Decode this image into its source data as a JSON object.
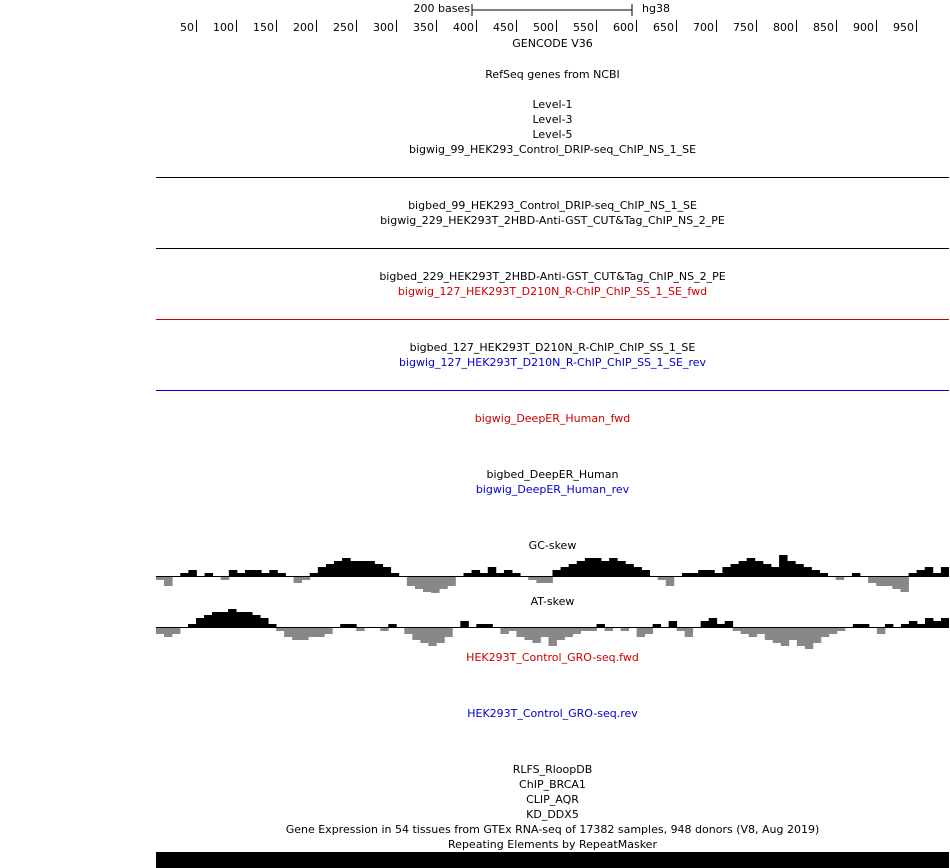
{
  "ruler": {
    "scale_label": "200 bases",
    "assembly": "hg38",
    "ticks": [
      "50",
      "100",
      "150",
      "200",
      "250",
      "300",
      "350",
      "400",
      "450",
      "500",
      "550",
      "600",
      "650",
      "700",
      "750",
      "800",
      "850",
      "900",
      "950"
    ]
  },
  "colors": {
    "black": "#000000",
    "red": "#cc0000",
    "blue": "#0000cc",
    "gray": "#888888"
  },
  "tracks": {
    "gencode": "GENCODE V36",
    "refseq": "RefSeq genes from NCBI",
    "level1": "Level-1",
    "level3": "Level-3",
    "level5": "Level-5",
    "bw99": "bigwig_99_HEK293_Control_DRIP-seq_ChIP_NS_1_SE",
    "bb99": "bigbed_99_HEK293_Control_DRIP-seq_ChIP_NS_1_SE",
    "bw229": "bigwig_229_HEK293T_2HBD-Anti-GST_CUT&Tag_ChIP_NS_2_PE",
    "bb229": "bigbed_229_HEK293T_2HBD-Anti-GST_CUT&Tag_ChIP_NS_2_PE",
    "bw127fwd": "bigwig_127_HEK293T_D210N_R-ChIP_ChIP_SS_1_SE_fwd",
    "bb127": "bigbed_127_HEK293T_D210N_R-ChIP_ChIP_SS_1_SE",
    "bw127rev": "bigwig_127_HEK293T_D210N_R-ChIP_ChIP_SS_1_SE_rev",
    "deeper_fwd": "bigwig_DeepER_Human_fwd",
    "deeper_bb": "bigbed_DeepER_Human",
    "deeper_rev": "bigwig_DeepER_Human_rev",
    "gcskew": "GC-skew",
    "atskew": "AT-skew",
    "gro_fwd": "HEK293T_Control_GRO-seq.fwd",
    "gro_rev": "HEK293T_Control_GRO-seq.rev",
    "rlfs": "RLFS_RloopDB",
    "chip_brca1": "ChIP_BRCA1",
    "clip_aqr": "CLIP_AQR",
    "kd_ddx5": "KD_DDX5",
    "gtex": "Gene Expression in 54 tissues from GTEx RNA-seq of 17382 samples, 948 donors (V8, Aug 2019)",
    "rmsk": "Repeating Elements by RepeatMasker"
  },
  "gc_skew": [
    -1,
    -3,
    0,
    1,
    2,
    0,
    1,
    0,
    -1,
    2,
    1,
    2,
    2,
    1,
    2,
    1,
    0,
    -2,
    -1,
    1,
    3,
    4,
    5,
    6,
    5,
    5,
    5,
    4,
    3,
    1,
    0,
    -3,
    -4,
    -5,
    -7,
    -4,
    -3,
    0,
    1,
    2,
    1,
    3,
    1,
    2,
    1,
    0,
    -1,
    -2,
    -2,
    2,
    3,
    4,
    5,
    6,
    6,
    5,
    6,
    5,
    4,
    3,
    2,
    0,
    -1,
    -3,
    0,
    1,
    1,
    2,
    2,
    1,
    3,
    4,
    5,
    6,
    5,
    4,
    3,
    7,
    5,
    4,
    3,
    2,
    1,
    0,
    -1,
    0,
    1,
    0,
    -2,
    -3,
    -3,
    -4,
    -5,
    1,
    2,
    3,
    1,
    3
  ],
  "at_skew": [
    -2,
    -3,
    -2,
    0,
    1,
    3,
    4,
    5,
    5,
    6,
    5,
    5,
    4,
    3,
    1,
    -1,
    -3,
    -4,
    -4,
    -3,
    -3,
    -2,
    0,
    1,
    1,
    -1,
    0,
    0,
    -1,
    1,
    0,
    -2,
    -4,
    -5,
    -6,
    -5,
    -3,
    0,
    2,
    0,
    1,
    1,
    0,
    -2,
    -1,
    -3,
    -4,
    -5,
    -3,
    -6,
    -4,
    -3,
    -2,
    -1,
    -1,
    1,
    -1,
    0,
    -1,
    0,
    -3,
    -2,
    1,
    0,
    2,
    -1,
    -3,
    0,
    2,
    3,
    1,
    2,
    -1,
    -2,
    -3,
    -2,
    -4,
    -5,
    -6,
    -4,
    -6,
    -7,
    -5,
    -3,
    -2,
    -1,
    0,
    1,
    1,
    0,
    -2,
    1,
    0,
    1,
    2,
    1,
    3,
    2,
    3
  ]
}
